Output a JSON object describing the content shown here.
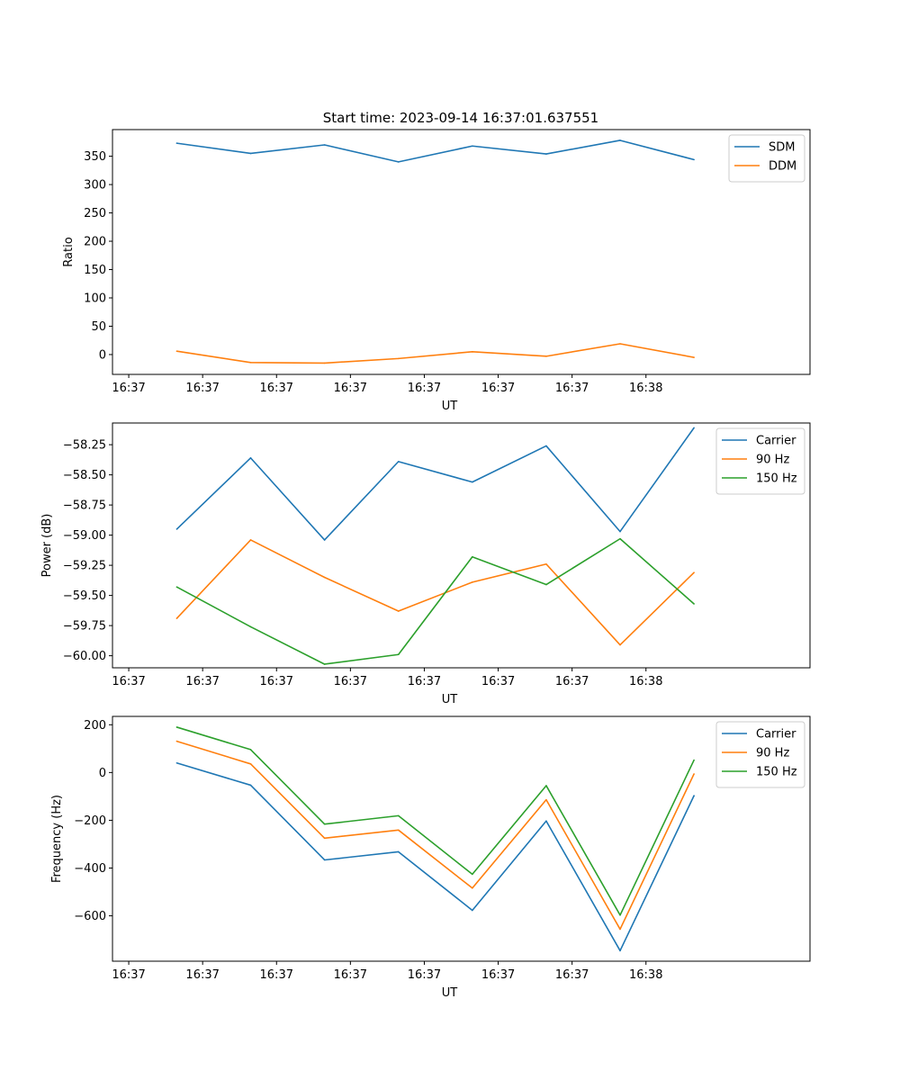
{
  "figure": {
    "title": "Start time: 2023-09-14 16:37:01.637551"
  },
  "chart_data": [
    {
      "type": "line",
      "xlabel": "UT",
      "ylabel": "Ratio",
      "x_tick_labels": [
        "16:37",
        "16:37",
        "16:37",
        "16:37",
        "16:37",
        "16:37",
        "16:37",
        "16:38"
      ],
      "x_index": [
        1,
        2,
        3,
        4,
        5,
        6,
        7,
        8
      ],
      "xlim": [
        -0.22,
        9.22
      ],
      "ylim": [
        -35,
        397
      ],
      "y_ticks": [
        0,
        50,
        100,
        150,
        200,
        250,
        300,
        350
      ],
      "legend_position": "upper right",
      "series": [
        {
          "name": "SDM",
          "color": "#1f77b4",
          "values": [
            373,
            355,
            370,
            340,
            368,
            354,
            378,
            344
          ]
        },
        {
          "name": "DDM",
          "color": "#ff7f0e",
          "values": [
            6,
            -14,
            -15,
            -7,
            5,
            -3,
            19,
            -5
          ]
        }
      ]
    },
    {
      "type": "line",
      "xlabel": "UT",
      "ylabel": "Power (dB)",
      "x_tick_labels": [
        "16:37",
        "16:37",
        "16:37",
        "16:37",
        "16:37",
        "16:37",
        "16:37",
        "16:38"
      ],
      "x_index": [
        1,
        2,
        3,
        4,
        5,
        6,
        7,
        8
      ],
      "xlim": [
        -0.22,
        9.22
      ],
      "ylim": [
        -60.1,
        -58.07
      ],
      "y_ticks": [
        -60.0,
        -59.75,
        -59.5,
        -59.25,
        -59.0,
        -58.75,
        -58.5,
        -58.25
      ],
      "y_tick_labels": [
        "−60.00",
        "−59.75",
        "−59.50",
        "−59.25",
        "−59.00",
        "−58.75",
        "−58.50",
        "−58.25"
      ],
      "legend_position": "upper right",
      "series": [
        {
          "name": "Carrier",
          "color": "#1f77b4",
          "values": [
            -58.95,
            -58.36,
            -59.04,
            -58.39,
            -58.56,
            -58.26,
            -58.97,
            -58.11
          ]
        },
        {
          "name": "90 Hz",
          "color": "#ff7f0e",
          "values": [
            -59.69,
            -59.04,
            -59.35,
            -59.63,
            -59.39,
            -59.24,
            -59.91,
            -59.31
          ]
        },
        {
          "name": "150 Hz",
          "color": "#2ca02c",
          "values": [
            -59.43,
            -59.76,
            -60.07,
            -59.99,
            -59.18,
            -59.41,
            -59.03,
            -59.57
          ]
        }
      ]
    },
    {
      "type": "line",
      "xlabel": "UT",
      "ylabel": "Frequency (Hz)",
      "x_tick_labels": [
        "16:37",
        "16:37",
        "16:37",
        "16:37",
        "16:37",
        "16:37",
        "16:37",
        "16:38"
      ],
      "x_index": [
        1,
        2,
        3,
        4,
        5,
        6,
        7,
        8
      ],
      "xlim": [
        -0.22,
        9.22
      ],
      "ylim": [
        -790,
        235
      ],
      "y_ticks": [
        -600,
        -400,
        -200,
        0,
        200
      ],
      "y_tick_labels": [
        "−600",
        "−400",
        "−200",
        "0",
        "200"
      ],
      "legend_position": "upper right",
      "series": [
        {
          "name": "Carrier",
          "color": "#1f77b4",
          "values": [
            40,
            -53,
            -366,
            -332,
            -577,
            -203,
            -746,
            -97
          ]
        },
        {
          "name": "90 Hz",
          "color": "#ff7f0e",
          "values": [
            131,
            36,
            -275,
            -241,
            -484,
            -114,
            -656,
            -6
          ]
        },
        {
          "name": "150 Hz",
          "color": "#2ca02c",
          "values": [
            190,
            96,
            -216,
            -181,
            -426,
            -55,
            -597,
            52
          ]
        }
      ]
    }
  ]
}
